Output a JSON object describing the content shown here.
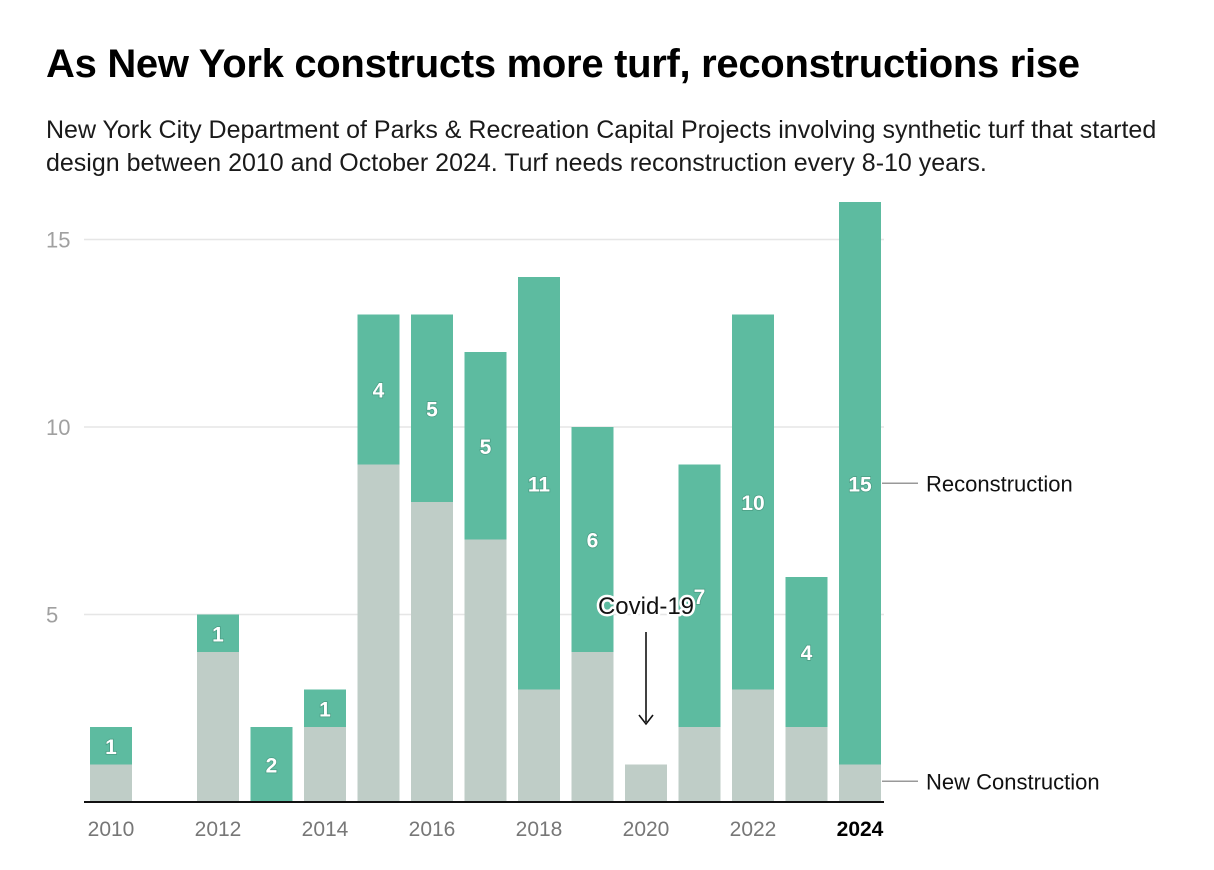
{
  "chart_data": {
    "type": "bar",
    "stacked": true,
    "title": "As New York constructs more turf, reconstructions rise",
    "subtitle": "New York City Department of Parks & Recreation Capital Projects involving synthetic turf that started design between 2010 and October 2024. Turf needs reconstruction every 8-10 years.",
    "categories": [
      2010,
      2011,
      2012,
      2013,
      2014,
      2015,
      2016,
      2017,
      2018,
      2019,
      2020,
      2021,
      2022,
      2023,
      2024
    ],
    "x_tick_labels": [
      "2010",
      "2012",
      "2014",
      "2016",
      "2018",
      "2020",
      "2022",
      "2024"
    ],
    "x_tick_bold": "2024",
    "series": [
      {
        "name": "New Construction",
        "color": "#bfcdc7",
        "values": [
          1,
          0,
          4,
          0,
          2,
          9,
          8,
          7,
          3,
          4,
          1,
          2,
          3,
          2,
          1
        ]
      },
      {
        "name": "Reconstruction",
        "color": "#5dbba0",
        "values": [
          1,
          0,
          1,
          2,
          1,
          4,
          5,
          5,
          11,
          6,
          0,
          7,
          10,
          4,
          15
        ]
      }
    ],
    "ylim": [
      0,
      16
    ],
    "yticks": [
      5,
      10,
      15
    ],
    "grid": true,
    "legend": "direct labels at right",
    "annotation": {
      "text": "Covid-19",
      "category": 2020
    }
  }
}
